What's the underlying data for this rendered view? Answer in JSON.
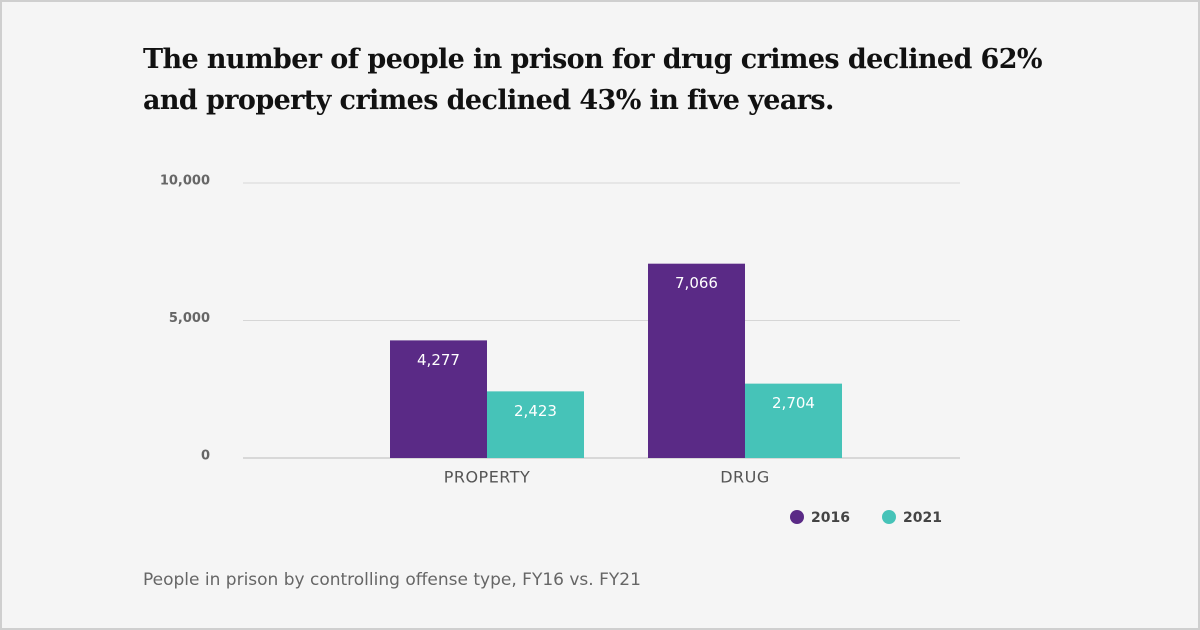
{
  "chart_data": {
    "type": "bar",
    "title": "The number of people in prison for drug crimes declined 62% and property crimes declined 43% in five years.",
    "caption": "People in prison by controlling offense type, FY16 vs. FY21",
    "categories": [
      "PROPERTY",
      "DRUG"
    ],
    "series": [
      {
        "name": "2016",
        "color": "#5a2a86",
        "values": [
          4277,
          7066
        ],
        "value_labels": [
          "4,277",
          "7,066"
        ]
      },
      {
        "name": "2021",
        "color": "#46c3b8",
        "values": [
          2423,
          2704
        ],
        "value_labels": [
          "2,423",
          "2,704"
        ]
      }
    ],
    "ylim": [
      0,
      10000
    ],
    "yticks": [
      0,
      {
        "value": 5000,
        "label": "5,000"
      },
      {
        "value": 10000,
        "label": "10,000"
      }
    ],
    "grid": true,
    "legend": "bottom-right"
  }
}
